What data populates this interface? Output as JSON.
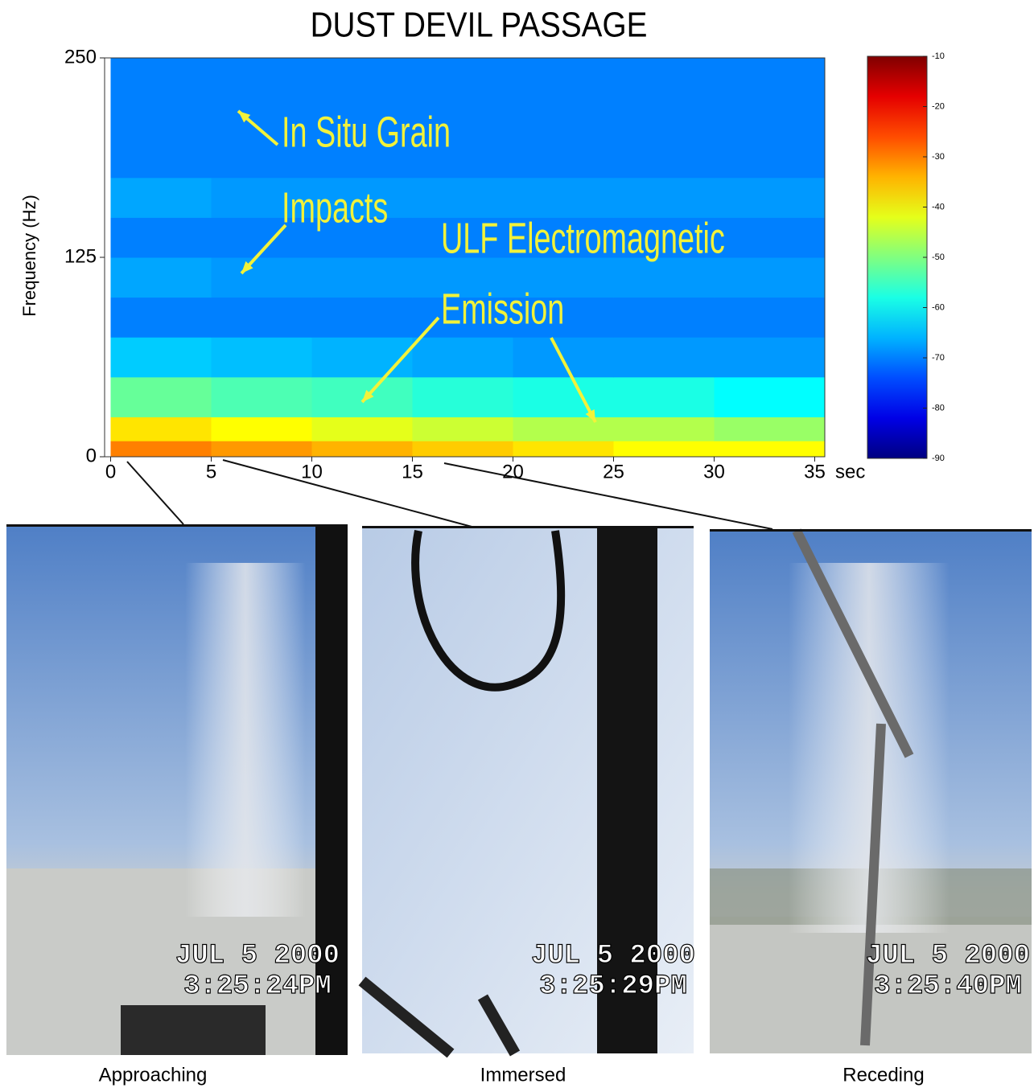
{
  "chart_data": {
    "type": "heatmap",
    "title": "DUST DEVIL PASSAGE",
    "y_label": "Frequency (Hz)",
    "x_unit": "sec",
    "xlim": [
      -0.3,
      35.5
    ],
    "xticks": [
      0,
      5,
      10,
      15,
      20,
      25,
      30,
      35
    ],
    "ylim": [
      0,
      250
    ],
    "yticks": [
      0,
      125,
      250
    ],
    "x_bins": [
      0,
      5,
      10,
      15,
      20,
      25,
      30,
      35.5
    ],
    "y_bins": [
      0,
      10,
      25,
      50,
      75,
      100,
      125,
      150,
      175,
      200,
      225,
      250
    ],
    "values": [
      [
        -30,
        -32,
        -34,
        -36,
        -38,
        -40,
        -40
      ],
      [
        -38,
        -40,
        -42,
        -44,
        -46,
        -46,
        -48
      ],
      [
        -52,
        -54,
        -55,
        -57,
        -58,
        -58,
        -60
      ],
      [
        -64,
        -65,
        -66,
        -67,
        -68,
        -68,
        -68
      ],
      [
        -70,
        -70,
        -70,
        -70,
        -70,
        -70,
        -70
      ],
      [
        -67,
        -68,
        -68,
        -68,
        -68,
        -68,
        -68
      ],
      [
        -70,
        -70,
        -70,
        -70,
        -70,
        -70,
        -70
      ],
      [
        -67,
        -68,
        -68,
        -68,
        -68,
        -68,
        -68
      ],
      [
        -70,
        -70,
        -70,
        -70,
        -70,
        -70,
        -70
      ],
      [
        -70,
        -70,
        -70,
        -70,
        -70,
        -70,
        -70
      ],
      [
        -70,
        -70,
        -70,
        -70,
        -70,
        -70,
        -70
      ]
    ],
    "colorbar": {
      "lim": [
        -90,
        -10
      ],
      "ticks": [
        -10,
        -20,
        -30,
        -40,
        -50,
        -60,
        -70,
        -80,
        -90
      ]
    },
    "annotations": [
      "In Situ Grain",
      "Impacts",
      "ULF Electromagnetic",
      "Emission"
    ]
  },
  "photos": [
    {
      "caption": "Approaching",
      "date": "JUL  5 2000",
      "time": "3:25:24PM"
    },
    {
      "caption": "Immersed",
      "date": "JUL  5 2000",
      "time": "3:25:29PM"
    },
    {
      "caption": "Receding",
      "date": "JUL  5 2000",
      "time": "3:25:40PM"
    }
  ]
}
